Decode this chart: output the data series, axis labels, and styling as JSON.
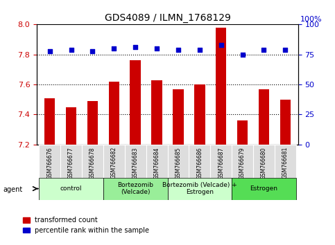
{
  "title": "GDS4089 / ILMN_1768129",
  "samples": [
    "GSM766676",
    "GSM766677",
    "GSM766678",
    "GSM766682",
    "GSM766683",
    "GSM766684",
    "GSM766685",
    "GSM766686",
    "GSM766687",
    "GSM766679",
    "GSM766680",
    "GSM766681"
  ],
  "red_values": [
    7.51,
    7.45,
    7.49,
    7.62,
    7.76,
    7.63,
    7.57,
    7.6,
    7.98,
    7.36,
    7.57,
    7.5
  ],
  "blue_values": [
    78,
    79,
    78,
    80,
    81,
    80,
    79,
    79,
    83,
    75,
    79,
    79
  ],
  "ylim_left": [
    7.2,
    8.0
  ],
  "ylim_right": [
    0,
    100
  ],
  "yticks_left": [
    7.2,
    7.4,
    7.6,
    7.8,
    8.0
  ],
  "yticks_right": [
    0,
    25,
    50,
    75,
    100
  ],
  "groups": [
    {
      "label": "control",
      "start": 0,
      "end": 3,
      "color": "#ccffcc"
    },
    {
      "label": "Bortezomib\n(Velcade)",
      "start": 3,
      "end": 6,
      "color": "#99ee99"
    },
    {
      "label": "Bortezomib (Velcade) +\nEstrogen",
      "start": 6,
      "end": 9,
      "color": "#ccffcc"
    },
    {
      "label": "Estrogen",
      "start": 9,
      "end": 12,
      "color": "#55dd55"
    }
  ],
  "bar_color": "#cc0000",
  "dot_color": "#0000cc",
  "bar_width": 0.5,
  "bg_color": "#ffffff",
  "tick_label_color_left": "#cc0000",
  "tick_label_color_right": "#0000cc",
  "legend_red": "transformed count",
  "legend_blue": "percentile rank within the sample",
  "agent_label": "agent",
  "dotted_lines": [
    7.4,
    7.6,
    7.8
  ]
}
